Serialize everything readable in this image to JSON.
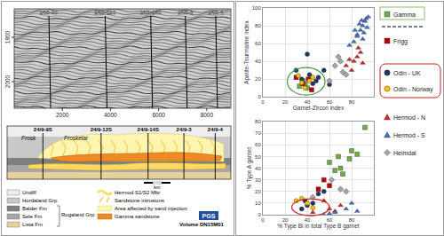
{
  "chart_data": [
    {
      "type": "scatter",
      "x_label": "Garnet-Zircon index",
      "y_label": "Apatite-Tourmaline index",
      "xlim": [
        0,
        100
      ],
      "ylim": [
        0,
        100
      ],
      "xticks": [
        0,
        20,
        40,
        60,
        80,
        100
      ],
      "yticks": [
        0,
        20,
        40,
        60,
        80,
        100
      ],
      "grid": true,
      "series": [
        {
          "name": "Gamma",
          "color": "#70ad47",
          "marker": "square",
          "x": [
            33,
            38,
            40,
            36
          ],
          "y": [
            12,
            14,
            10,
            18
          ]
        },
        {
          "name": "Frigg",
          "color": "#c00000",
          "marker": "square",
          "x": [
            36,
            41,
            44,
            30
          ],
          "y": [
            15,
            20,
            8,
            22
          ]
        },
        {
          "name": "Odin - UK",
          "color": "#1f3864",
          "marker": "circle",
          "x": [
            40,
            35,
            45,
            50,
            42,
            48,
            55,
            60,
            30
          ],
          "y": [
            48,
            20,
            15,
            22,
            25,
            18,
            30,
            14,
            30
          ]
        },
        {
          "name": "Odin - Norway",
          "color": "#ffc000",
          "marker": "circle",
          "x": [
            35,
            42,
            38,
            45,
            32
          ],
          "y": [
            16,
            18,
            10,
            22,
            24
          ]
        },
        {
          "name": "Hermod - N",
          "color": "#e02020",
          "marker": "triangle-up",
          "x": [
            75,
            80,
            82,
            85,
            88,
            90,
            78,
            86
          ],
          "y": [
            35,
            30,
            40,
            45,
            50,
            38,
            42,
            55
          ]
        },
        {
          "name": "Hermod - S",
          "color": "#4472c4",
          "marker": "triangle-up",
          "x": [
            82,
            85,
            88,
            90,
            92,
            93,
            95,
            87,
            90,
            85,
            94,
            91,
            89,
            83,
            78
          ],
          "y": [
            62,
            70,
            75,
            80,
            85,
            88,
            90,
            82,
            65,
            68,
            78,
            72,
            86,
            75,
            58
          ]
        },
        {
          "name": "Heimdal",
          "color": "#a6a6a6",
          "marker": "diamond",
          "x": [
            65,
            70,
            72,
            68,
            75,
            60
          ],
          "y": [
            35,
            40,
            28,
            45,
            25,
            18
          ]
        }
      ]
    },
    {
      "type": "scatter",
      "x_label": "% Type Bi in total Type B garnet",
      "y_label": "% Type A garnet",
      "xlim": [
        0,
        100
      ],
      "ylim": [
        0,
        80
      ],
      "xticks": [
        0,
        20,
        40,
        60,
        80,
        100
      ],
      "yticks": [
        0,
        10,
        20,
        30,
        40,
        50,
        60,
        70,
        80
      ],
      "grid": true,
      "series": [
        {
          "name": "Gamma",
          "color": "#70ad47",
          "marker": "square",
          "x": [
            92,
            80,
            85,
            78,
            70,
            65,
            72,
            60,
            68
          ],
          "y": [
            75,
            55,
            52,
            48,
            40,
            38,
            35,
            45,
            50
          ]
        },
        {
          "name": "Frigg",
          "color": "#c00000",
          "marker": "square",
          "x": [
            55,
            60,
            50
          ],
          "y": [
            30,
            25,
            22
          ]
        },
        {
          "name": "Odin - UK",
          "color": "#1f3864",
          "marker": "circle",
          "x": [
            35,
            40,
            45,
            50,
            38,
            55
          ],
          "y": [
            5,
            8,
            10,
            18,
            12,
            20
          ]
        },
        {
          "name": "Odin - Norway",
          "color": "#ffc000",
          "marker": "circle",
          "x": [
            40,
            35,
            45,
            30
          ],
          "y": [
            10,
            14,
            6,
            12
          ]
        },
        {
          "name": "Hermod - N",
          "color": "#e02020",
          "marker": "triangle-up",
          "x": [
            45,
            60,
            70,
            55,
            65
          ],
          "y": [
            2,
            5,
            8,
            12,
            3
          ]
        },
        {
          "name": "Hermod - S",
          "color": "#4472c4",
          "marker": "triangle-up",
          "x": [
            55,
            65,
            75,
            80,
            60,
            85
          ],
          "y": [
            0,
            2,
            5,
            10,
            1,
            3
          ]
        },
        {
          "name": "Heimdal",
          "color": "#a6a6a6",
          "marker": "diamond",
          "x": [
            45,
            62,
            70,
            75
          ],
          "y": [
            15,
            30,
            22,
            20
          ]
        }
      ]
    }
  ],
  "seismic": {
    "wells": [
      "24/9-9S",
      "24/9-12S",
      "24/9-14S",
      "24/9-3",
      "24/9-4"
    ],
    "xlim": [
      0,
      9000
    ],
    "xticks": [
      2000,
      4000,
      6000,
      8000
    ],
    "ylim": [
      1672,
      2120
    ],
    "yticks": [
      1800,
      2000
    ]
  },
  "section": {
    "wells": [
      "24/9-9S",
      "24/9-12S",
      "24/9-14S",
      "24/9-3",
      "24/9-4"
    ],
    "fields": [
      "Frosk",
      "Froskelar"
    ],
    "scale_label": "km",
    "units": [
      {
        "label": "Undiff",
        "color": "#eeeeee"
      },
      {
        "label": "Hordaland Grp",
        "color": "#c8c8c8"
      },
      {
        "label": "Balder Fm",
        "color": "#7f7f7f"
      },
      {
        "label": "Sele Fm",
        "color": "#a6a6a6"
      },
      {
        "label": "Lista Fm",
        "color": "#e6d09c"
      }
    ],
    "group": "Rogaland Grp",
    "features": [
      {
        "label": "Hermod S1/S2 Mbr",
        "color": "#ffd966"
      },
      {
        "label": "Sandstone intrusions",
        "color": "#f4c430"
      },
      {
        "label": "Area affected by sand injection",
        "color": "#fff5b0"
      },
      {
        "label": "Gamma sandstone",
        "color": "#f08a24"
      }
    ],
    "volume": "Volume DN15M01",
    "credit": "PGS"
  }
}
